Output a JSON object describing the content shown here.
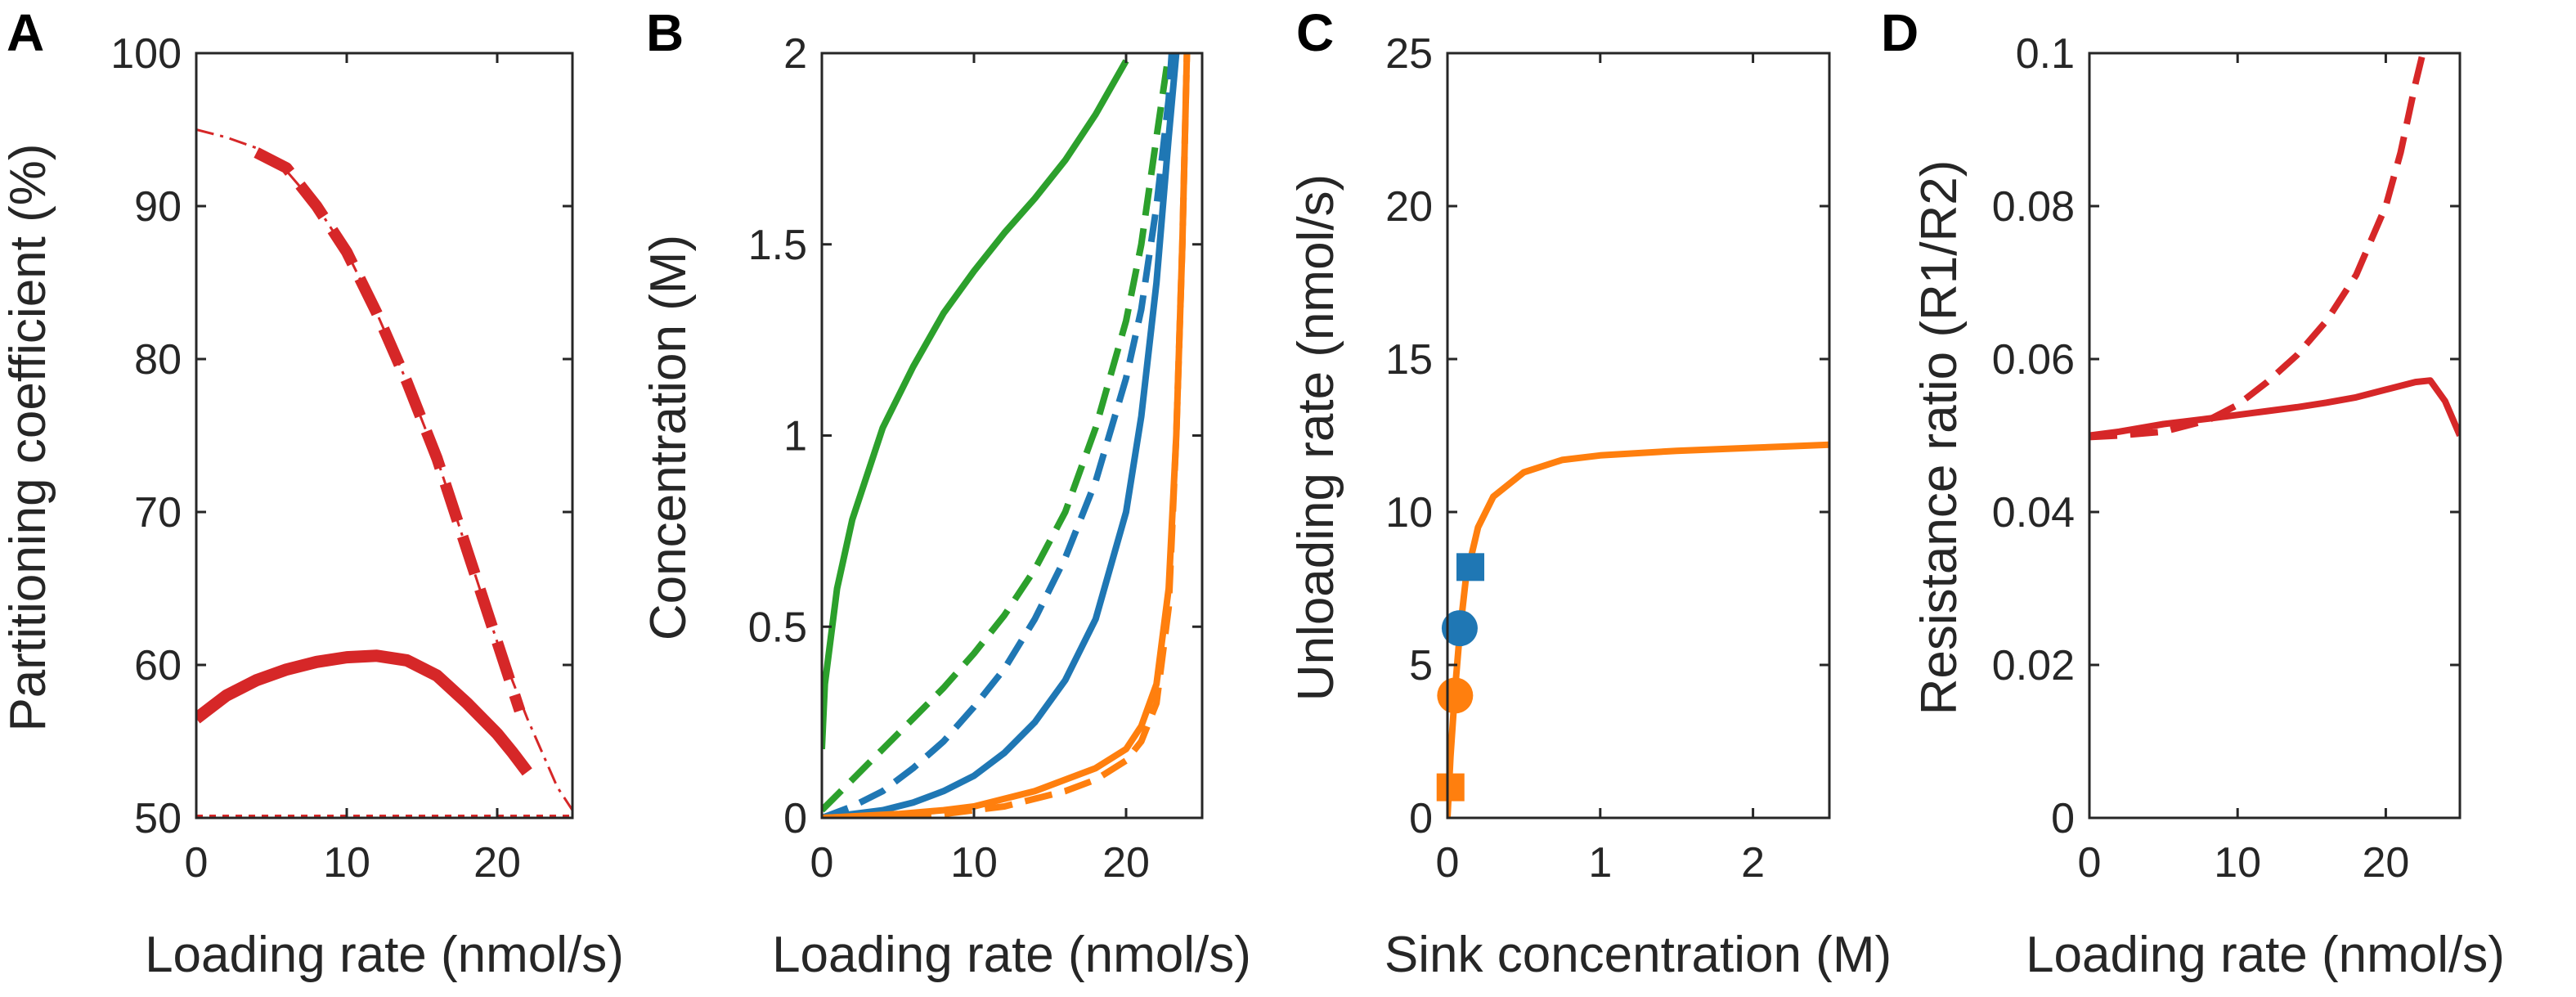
{
  "chart_data": [
    {
      "panel": "A",
      "type": "line",
      "xlabel": "Loading rate (nmol/s)",
      "ylabel": "Partitioning coefficient (%)",
      "xlim": [
        0,
        25
      ],
      "ylim": [
        50,
        100
      ],
      "xticks": [
        0,
        10,
        20
      ],
      "yticks": [
        50,
        60,
        70,
        80,
        90,
        100
      ],
      "xtick_labels": [
        "0",
        "10",
        "20"
      ],
      "ytick_labels": [
        "50",
        "60",
        "70",
        "80",
        "90",
        "100"
      ],
      "series": [
        {
          "name": "solid",
          "color": "#d62728",
          "style": "solid",
          "x": [
            0,
            2,
            4,
            6,
            8,
            10,
            12,
            14,
            16,
            18,
            20,
            21,
            22
          ],
          "y": [
            56.5,
            58,
            59,
            59.7,
            60.2,
            60.5,
            60.6,
            60.3,
            59.3,
            57.5,
            55.5,
            54.3,
            53
          ]
        },
        {
          "name": "thick-dashed",
          "color": "#d62728",
          "style": "dashed",
          "x": [
            4,
            6,
            8,
            10,
            12,
            14,
            16,
            18,
            20,
            21.5
          ],
          "y": [
            93.5,
            92.5,
            90,
            87,
            83,
            78.5,
            73.5,
            67.5,
            61.5,
            57
          ]
        },
        {
          "name": "thin-dash-dot",
          "color": "#d62728",
          "style": "dashdot",
          "x": [
            0,
            2,
            4,
            6,
            8,
            10,
            12,
            14,
            16,
            18,
            20,
            22,
            24,
            25
          ],
          "y": [
            95,
            94.5,
            93.8,
            92.3,
            90,
            87,
            83,
            78.5,
            73.5,
            67.5,
            61.5,
            56.5,
            52,
            50.5
          ]
        },
        {
          "name": "dotted",
          "color": "#d62728",
          "style": "dotted",
          "x": [
            0,
            25
          ],
          "y": [
            50,
            50
          ]
        }
      ]
    },
    {
      "panel": "B",
      "type": "line",
      "xlabel": "Loading rate (nmol/s)",
      "ylabel": "Concentration (M)",
      "xlim": [
        0,
        25
      ],
      "ylim": [
        0,
        2
      ],
      "xticks": [
        0,
        10,
        20
      ],
      "yticks": [
        0,
        0.5,
        1,
        1.5,
        2
      ],
      "xtick_labels": [
        "0",
        "10",
        "20"
      ],
      "ytick_labels": [
        "0",
        "0.5",
        "1",
        "1.5",
        "2"
      ],
      "series": [
        {
          "name": "green-solid",
          "color": "#2ca02c",
          "style": "solid",
          "x": [
            0,
            0.2,
            1,
            2,
            4,
            6,
            8,
            10,
            12,
            14,
            16,
            18,
            20
          ],
          "y": [
            0.18,
            0.35,
            0.6,
            0.78,
            1.02,
            1.18,
            1.32,
            1.43,
            1.53,
            1.62,
            1.72,
            1.84,
            1.98
          ]
        },
        {
          "name": "green-dashed",
          "color": "#2ca02c",
          "style": "dashed",
          "x": [
            0,
            2,
            4,
            6,
            8,
            10,
            12,
            14,
            16,
            18,
            20,
            21,
            22,
            22.8
          ],
          "y": [
            0.02,
            0.1,
            0.18,
            0.26,
            0.34,
            0.43,
            0.53,
            0.65,
            0.8,
            1.02,
            1.3,
            1.5,
            1.78,
            2.0
          ]
        },
        {
          "name": "blue-dashed",
          "color": "#1f77b4",
          "style": "dashed",
          "x": [
            0,
            2,
            4,
            6,
            8,
            10,
            12,
            14,
            16,
            18,
            20,
            21,
            22,
            22.8,
            23
          ],
          "y": [
            0,
            0.03,
            0.07,
            0.13,
            0.2,
            0.29,
            0.39,
            0.52,
            0.68,
            0.88,
            1.15,
            1.33,
            1.6,
            1.88,
            2.0
          ]
        },
        {
          "name": "blue-solid",
          "color": "#1f77b4",
          "style": "solid",
          "x": [
            0,
            4,
            6,
            8,
            10,
            12,
            14,
            16,
            18,
            20,
            21,
            22,
            22.8,
            23.3
          ],
          "y": [
            0,
            0.02,
            0.04,
            0.07,
            0.11,
            0.17,
            0.25,
            0.36,
            0.52,
            0.8,
            1.05,
            1.4,
            1.78,
            2.0
          ]
        },
        {
          "name": "orange-solid",
          "color": "#ff7f0e",
          "style": "solid",
          "x": [
            0,
            5,
            8,
            10,
            12,
            14,
            16,
            18,
            20,
            21,
            22,
            22.8,
            23.3,
            23.7,
            24
          ],
          "y": [
            0,
            0.01,
            0.02,
            0.03,
            0.05,
            0.07,
            0.1,
            0.13,
            0.18,
            0.24,
            0.35,
            0.6,
            1.0,
            1.5,
            2.0
          ]
        },
        {
          "name": "orange-dashed",
          "color": "#ff7f0e",
          "style": "dashed",
          "x": [
            0,
            5,
            8,
            10,
            12,
            14,
            16,
            18,
            20,
            21,
            22,
            22.8,
            23.3,
            23.7,
            24
          ],
          "y": [
            0,
            0,
            0.01,
            0.02,
            0.03,
            0.05,
            0.07,
            0.1,
            0.15,
            0.2,
            0.3,
            0.55,
            1.0,
            1.5,
            2.0
          ]
        }
      ]
    },
    {
      "panel": "C",
      "type": "line",
      "xlabel": "Sink concentration (M)",
      "ylabel": "Unloading rate (nmol/s)",
      "xlim": [
        0,
        2.5
      ],
      "ylim": [
        0,
        25
      ],
      "xticks": [
        0,
        1,
        2
      ],
      "yticks": [
        0,
        5,
        10,
        15,
        20,
        25
      ],
      "xtick_labels": [
        "0",
        "1",
        "2"
      ],
      "ytick_labels": [
        "0",
        "5",
        "10",
        "15",
        "20",
        "25"
      ],
      "series": [
        {
          "name": "orange-curve",
          "color": "#ff7f0e",
          "style": "solid",
          "x": [
            0.0,
            0.02,
            0.05,
            0.08,
            0.12,
            0.2,
            0.3,
            0.5,
            0.75,
            1.0,
            1.5,
            2.0,
            2.5
          ],
          "y": [
            0.0,
            2.0,
            4.2,
            6.0,
            7.8,
            9.5,
            10.5,
            11.3,
            11.7,
            11.85,
            12.0,
            12.1,
            12.2
          ]
        }
      ],
      "markers": [
        {
          "name": "blue-square",
          "shape": "square",
          "color": "#1f77b4",
          "x": 0.15,
          "y": 8.2
        },
        {
          "name": "blue-circle",
          "shape": "circle",
          "color": "#1f77b4",
          "x": 0.08,
          "y": 6.2
        },
        {
          "name": "orange-circle",
          "shape": "circle",
          "color": "#ff7f0e",
          "x": 0.05,
          "y": 4.0
        },
        {
          "name": "orange-square",
          "shape": "square",
          "color": "#ff7f0e",
          "x": 0.02,
          "y": 1.0
        }
      ]
    },
    {
      "panel": "D",
      "type": "line",
      "xlabel": "Loading rate (nmol/s)",
      "ylabel": "Resistance ratio (R1/R2)",
      "xlim": [
        0,
        25
      ],
      "ylim": [
        0,
        0.1
      ],
      "xticks": [
        0,
        10,
        20
      ],
      "yticks": [
        0,
        0.02,
        0.04,
        0.06,
        0.08,
        0.1
      ],
      "xtick_labels": [
        "0",
        "10",
        "20"
      ],
      "ytick_labels": [
        "0",
        "0.02",
        "0.04",
        "0.06",
        "0.08",
        "0.1"
      ],
      "series": [
        {
          "name": "solid",
          "color": "#d62728",
          "style": "solid",
          "x": [
            0,
            2,
            5,
            8,
            10,
            12,
            14,
            16,
            18,
            20,
            22,
            23,
            24,
            25
          ],
          "y": [
            0.05,
            0.0505,
            0.0515,
            0.0522,
            0.0527,
            0.0532,
            0.0537,
            0.0543,
            0.055,
            0.056,
            0.057,
            0.0572,
            0.0545,
            0.05
          ]
        },
        {
          "name": "dashed",
          "color": "#d62728",
          "style": "dashed",
          "x": [
            0,
            2,
            5,
            8,
            10,
            12,
            14,
            16,
            18,
            20,
            21,
            22,
            22.5
          ],
          "y": [
            0.0498,
            0.05,
            0.0505,
            0.052,
            0.054,
            0.057,
            0.0605,
            0.065,
            0.071,
            0.08,
            0.087,
            0.096,
            0.1
          ]
        }
      ]
    }
  ]
}
